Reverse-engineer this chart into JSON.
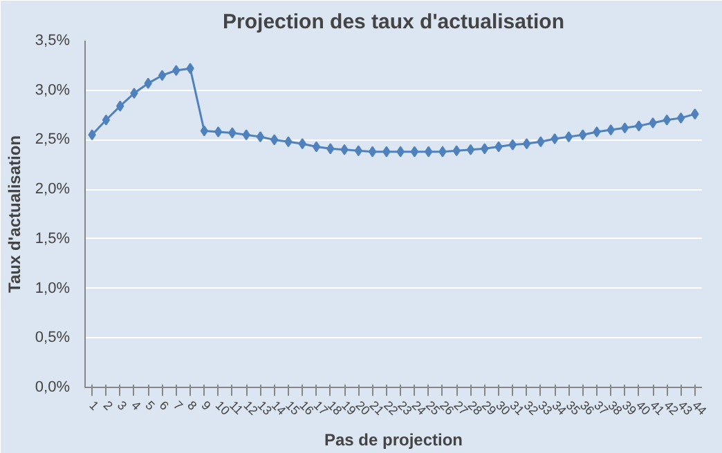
{
  "chart_data": {
    "type": "line",
    "title": "Projection des taux d'actualisation",
    "xlabel": "Pas de projection",
    "ylabel": "Taux d'actualisation",
    "categories": [
      "1",
      "2",
      "3",
      "4",
      "5",
      "6",
      "7",
      "8",
      "9",
      "10",
      "11",
      "12",
      "13",
      "14",
      "15",
      "16",
      "17",
      "18",
      "19",
      "20",
      "21",
      "22",
      "23",
      "24",
      "25",
      "26",
      "27",
      "28",
      "29",
      "30",
      "31",
      "32",
      "33",
      "34",
      "35",
      "36",
      "37",
      "38",
      "39",
      "40",
      "41",
      "42",
      "43",
      "44"
    ],
    "series": [
      {
        "color": "#4f81bd",
        "values": [
          2.55,
          2.7,
          2.84,
          2.97,
          3.07,
          3.15,
          3.2,
          3.22,
          2.59,
          2.58,
          2.57,
          2.55,
          2.53,
          2.5,
          2.48,
          2.46,
          2.43,
          2.41,
          2.4,
          2.39,
          2.38,
          2.38,
          2.38,
          2.38,
          2.38,
          2.38,
          2.39,
          2.4,
          2.41,
          2.43,
          2.45,
          2.46,
          2.48,
          2.51,
          2.53,
          2.55,
          2.58,
          2.6,
          2.62,
          2.64,
          2.67,
          2.7,
          2.72,
          2.76
        ]
      }
    ],
    "ylim": [
      0,
      3.5
    ],
    "yticks": [
      {
        "value": 0,
        "label": "0,0%"
      },
      {
        "value": 0.5,
        "label": "0,5%"
      },
      {
        "value": 1,
        "label": "1,0%"
      },
      {
        "value": 1.5,
        "label": "1,5%"
      },
      {
        "value": 2,
        "label": "2,0%"
      },
      {
        "value": 2.5,
        "label": "2,5%"
      },
      {
        "value": 3,
        "label": "3,0%"
      },
      {
        "value": 3.5,
        "label": "3,5%"
      }
    ],
    "grid": "y",
    "marker": "diamond",
    "line_style": "solid"
  }
}
